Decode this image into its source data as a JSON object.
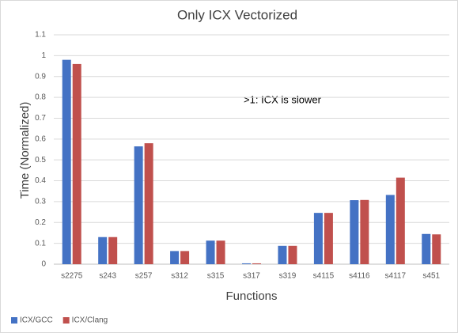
{
  "chart_data": {
    "type": "bar",
    "title": "Only ICX Vectorized",
    "xlabel": "Functions",
    "ylabel": "Time (Normalized)",
    "annotation": ">1: ICX is slower",
    "categories": [
      "s2275",
      "s243",
      "s257",
      "s312",
      "s315",
      "s317",
      "s319",
      "s4115",
      "s4116",
      "s4117",
      "s451"
    ],
    "series": [
      {
        "name": "ICX/GCC",
        "color": "#4472c4",
        "values": [
          0.98,
          0.13,
          0.565,
          0.063,
          0.113,
          0.004,
          0.088,
          0.246,
          0.307,
          0.332,
          0.145
        ]
      },
      {
        "name": "ICX/Clang",
        "color": "#c0504d",
        "values": [
          0.96,
          0.13,
          0.58,
          0.063,
          0.113,
          0.004,
          0.088,
          0.246,
          0.308,
          0.415,
          0.143
        ]
      }
    ],
    "ylim": [
      0,
      1.1
    ],
    "yticks": [
      0,
      0.1,
      0.2,
      0.3,
      0.4,
      0.5,
      0.6,
      0.7,
      0.8,
      0.9,
      1,
      1.1
    ],
    "grid": true,
    "legend": "bottom-left"
  }
}
